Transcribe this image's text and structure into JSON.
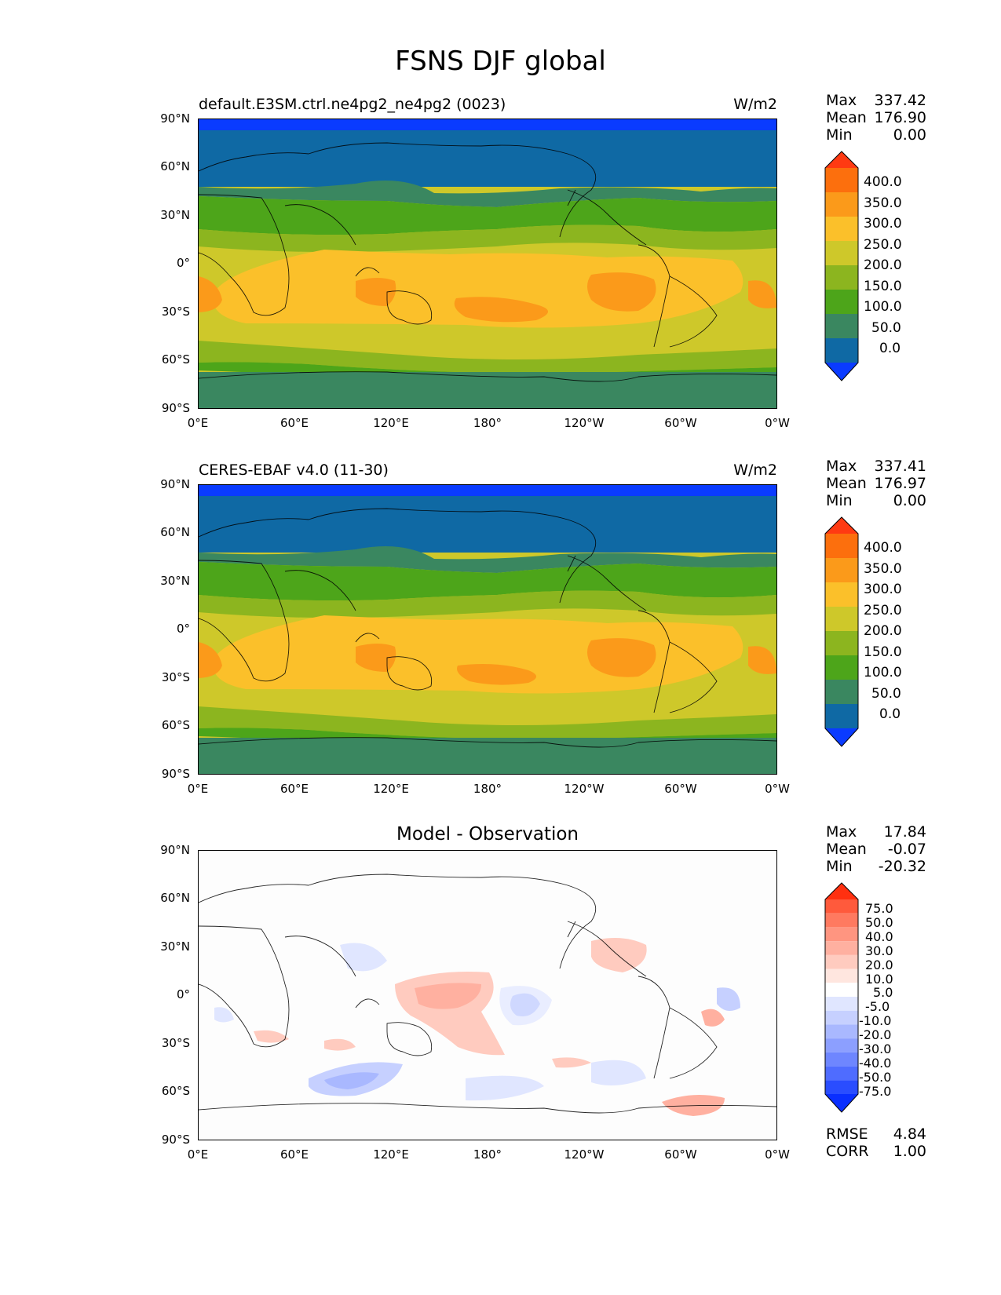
{
  "figure_title": "FSNS DJF global",
  "x_ticks": [
    "0°E",
    "60°E",
    "120°E",
    "180°",
    "120°W",
    "60°W",
    "0°W"
  ],
  "y_ticks": [
    "90°N",
    "60°N",
    "30°N",
    "0°",
    "30°S",
    "60°S",
    "90°S"
  ],
  "panels": [
    {
      "title": "default.E3SM.ctrl.ne4pg2_ne4pg2 (0023)",
      "units": "W/m2",
      "stats": {
        "max_label": "Max",
        "max": "337.42",
        "mean_label": "Mean",
        "mean": "176.90",
        "min_label": "Min",
        "min": "0.00"
      },
      "colorbar": {
        "labels": [
          "400.0",
          "350.0",
          "300.0",
          "250.0",
          "200.0",
          "150.0",
          "100.0",
          "50.0",
          "0.0"
        ],
        "colors_top_to_bottom": [
          "#ff3a12",
          "#fc6f0d",
          "#fb9a1a",
          "#fbc02a",
          "#cec82a",
          "#8cb51f",
          "#4da51a",
          "#3a8760",
          "#0f69a4",
          "#0a3bff"
        ]
      }
    },
    {
      "title": "CERES-EBAF v4.0 (11-30)",
      "units": "W/m2",
      "stats": {
        "max_label": "Max",
        "max": "337.41",
        "mean_label": "Mean",
        "mean": "176.97",
        "min_label": "Min",
        "min": "0.00"
      },
      "colorbar": {
        "labels": [
          "400.0",
          "350.0",
          "300.0",
          "250.0",
          "200.0",
          "150.0",
          "100.0",
          "50.0",
          "0.0"
        ],
        "colors_top_to_bottom": [
          "#ff3a12",
          "#fc6f0d",
          "#fb9a1a",
          "#fbc02a",
          "#cec82a",
          "#8cb51f",
          "#4da51a",
          "#3a8760",
          "#0f69a4",
          "#0a3bff"
        ]
      }
    }
  ],
  "diff_panel": {
    "title": "Model - Observation",
    "stats": {
      "max_label": "Max",
      "max": "17.84",
      "mean_label": "Mean",
      "mean": "-0.07",
      "min_label": "Min",
      "min": "-20.32"
    },
    "colorbar": {
      "labels": [
        "75.0",
        "50.0",
        "40.0",
        "30.0",
        "20.0",
        "10.0",
        "5.0",
        "-5.0",
        "-10.0",
        "-20.0",
        "-30.0",
        "-40.0",
        "-50.0",
        "-75.0"
      ],
      "colors_top_to_bottom": [
        "#ff3010",
        "#ff5a3c",
        "#ff7a60",
        "#ff9580",
        "#ffb0a0",
        "#ffcbbf",
        "#ffe6df",
        "#ffffff",
        "#e0e6ff",
        "#c6d0ff",
        "#a9b8ff",
        "#8c9fff",
        "#6e86ff",
        "#4f6cff",
        "#2a4dff",
        "#0a2fff"
      ]
    },
    "footer": {
      "rmse_label": "RMSE",
      "rmse": "4.84",
      "corr_label": "CORR",
      "corr": "1.00"
    }
  }
}
